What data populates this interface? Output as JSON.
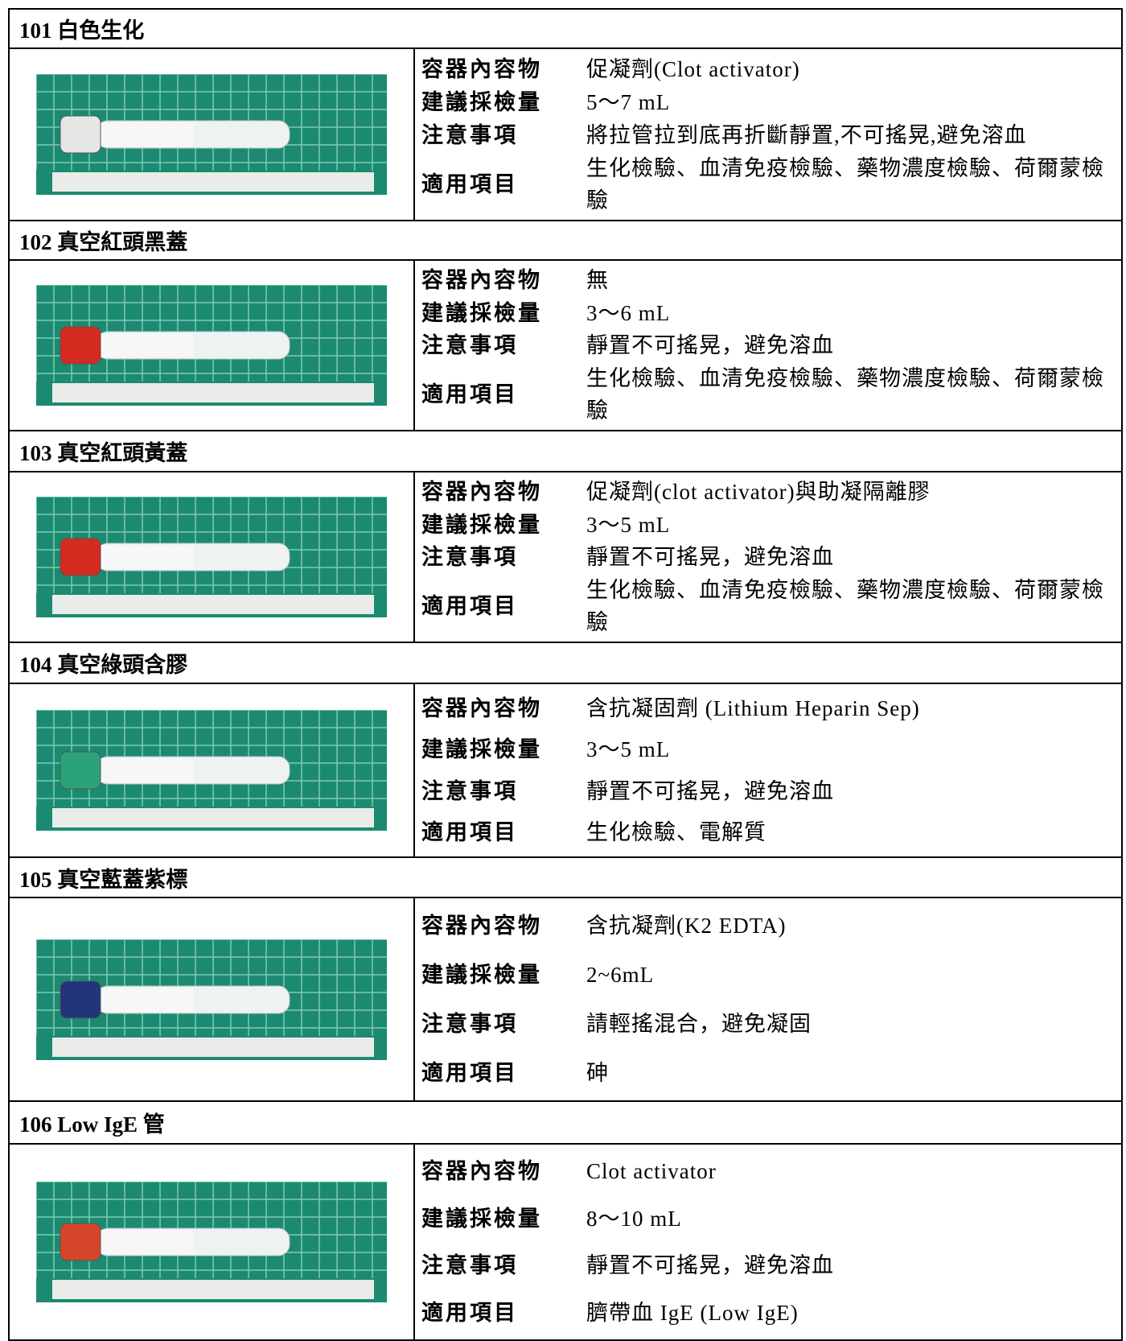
{
  "sections": [
    {
      "title": "101 白色生化",
      "items": [
        {
          "label": "容器內容物",
          "value": "促凝劑(Clot activator)"
        },
        {
          "label": "建議採檢量",
          "value": "5～7 mL"
        },
        {
          "label": "注意事項",
          "value": "將拉管拉到底再折斷靜置,不可搖晃,避免溶血"
        },
        {
          "label": "適用項目",
          "value": "生化檢驗、血清免疫檢驗、藥物濃度檢驗、荷爾蒙檢驗"
        }
      ]
    },
    {
      "title": "102 真空紅頭黑蓋",
      "items": [
        {
          "label": "容器內容物",
          "value": "無"
        },
        {
          "label": "建議採檢量",
          "value": "3～6 mL"
        },
        {
          "label": "注意事項",
          "value": "靜置不可搖晃，避免溶血"
        },
        {
          "label": "適用項目",
          "value": "生化檢驗、血清免疫檢驗、藥物濃度檢驗、荷爾蒙檢驗"
        }
      ]
    },
    {
      "title": "103 真空紅頭黃蓋",
      "items": [
        {
          "label": "容器內容物",
          "value": "促凝劑(clot activator)與助凝隔離膠"
        },
        {
          "label": "建議採檢量",
          "value": "3～5 mL"
        },
        {
          "label": "注意事項",
          "value": "靜置不可搖晃，避免溶血"
        },
        {
          "label": "適用項目",
          "value": "生化檢驗、血清免疫檢驗、藥物濃度檢驗、荷爾蒙檢驗"
        }
      ]
    },
    {
      "title": "104 真空綠頭含膠",
      "items": [
        {
          "label": "容器內容物",
          "value": "含抗凝固劑 (Lithium Heparin Sep)"
        },
        {
          "label": "建議採檢量",
          "value": "3～5 mL"
        },
        {
          "label": "注意事項",
          "value": "靜置不可搖晃，避免溶血"
        },
        {
          "label": "適用項目",
          "value": "生化檢驗、電解質"
        }
      ]
    },
    {
      "title": "105 真空藍蓋紫標",
      "items": [
        {
          "label": "容器內容物",
          "value": "含抗凝劑(K2 EDTA)"
        },
        {
          "label": "建議採檢量",
          "value": "2~6mL"
        },
        {
          "label": "注意事項",
          "value": "請輕搖混合，避免凝固"
        },
        {
          "label": "適用項目",
          "value": "砷"
        }
      ]
    },
    {
      "title": "106 Low IgE 管",
      "items": [
        {
          "label": "容器內容物",
          "value": "Clot activator"
        },
        {
          "label": "建議採檢量",
          "value": "8～10 mL"
        },
        {
          "label": "注意事項",
          "value": "靜置不可搖晃，避免溶血"
        },
        {
          "label": "適用項目",
          "value": "臍帶血 IgE (Low IgE)"
        }
      ]
    }
  ]
}
